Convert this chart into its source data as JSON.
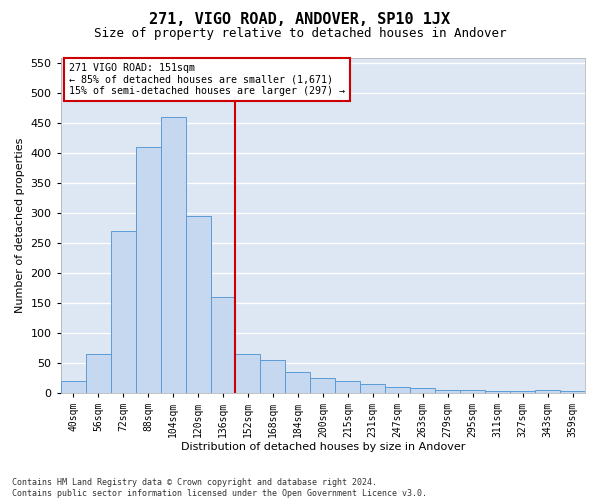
{
  "title": "271, VIGO ROAD, ANDOVER, SP10 1JX",
  "subtitle": "Size of property relative to detached houses in Andover",
  "xlabel": "Distribution of detached houses by size in Andover",
  "ylabel": "Number of detached properties",
  "footer_line1": "Contains HM Land Registry data © Crown copyright and database right 2024.",
  "footer_line2": "Contains public sector information licensed under the Open Government Licence v3.0.",
  "annotation_line1": "271 VIGO ROAD: 151sqm",
  "annotation_line2": "← 85% of detached houses are smaller (1,671)",
  "annotation_line3": "15% of semi-detached houses are larger (297) →",
  "bar_color": "#c5d8f0",
  "bar_edge_color": "#5b9bd5",
  "vline_color": "#cc0000",
  "categories": [
    "40sqm",
    "56sqm",
    "72sqm",
    "88sqm",
    "104sqm",
    "120sqm",
    "136sqm",
    "152sqm",
    "168sqm",
    "184sqm",
    "200sqm",
    "215sqm",
    "231sqm",
    "247sqm",
    "263sqm",
    "279sqm",
    "295sqm",
    "311sqm",
    "327sqm",
    "343sqm",
    "359sqm"
  ],
  "values": [
    20,
    65,
    270,
    410,
    460,
    295,
    160,
    65,
    55,
    35,
    25,
    20,
    15,
    10,
    8,
    4,
    4,
    3,
    2,
    5,
    3
  ],
  "ylim": [
    0,
    560
  ],
  "yticks": [
    0,
    50,
    100,
    150,
    200,
    250,
    300,
    350,
    400,
    450,
    500,
    550
  ],
  "background_color": "#ffffff",
  "plot_background": "#dde6f3",
  "grid_color": "#ffffff",
  "title_fontsize": 11,
  "subtitle_fontsize": 9,
  "axis_label_fontsize": 8,
  "tick_fontsize": 7,
  "footer_fontsize": 6
}
